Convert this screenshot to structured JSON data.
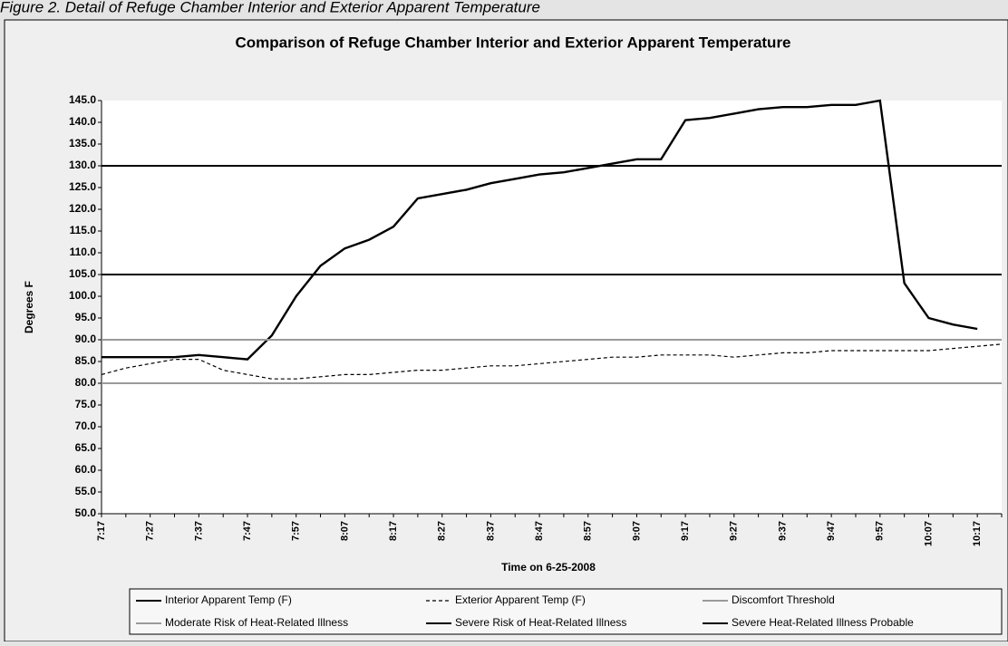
{
  "caption": "Figure 2. Detail of Refuge Chamber Interior and Exterior Apparent Temperature",
  "chart_data": {
    "type": "line",
    "title": "Comparison of Refuge Chamber Interior and Exterior Apparent Temperature",
    "x_label": "Time on 6-25-2008",
    "y_label": "Degrees F",
    "categories": [
      "7:17",
      null,
      "7:27",
      null,
      "7:37",
      null,
      "7:47",
      null,
      "7:57",
      null,
      "8:07",
      null,
      "8:17",
      null,
      "8:27",
      null,
      "8:37",
      null,
      "8:47",
      null,
      "8:57",
      null,
      "9:07",
      null,
      "9:17",
      null,
      "9:27",
      null,
      "9:37",
      null,
      "9:47",
      null,
      "9:57",
      null,
      "10:07",
      null,
      "10:17",
      null
    ],
    "ylim": [
      50,
      145
    ],
    "yticks": [
      {
        "value": 50,
        "label": "50.0"
      },
      {
        "value": 55,
        "label": "55.0"
      },
      {
        "value": 60,
        "label": "60.0"
      },
      {
        "value": 65,
        "label": "65.0"
      },
      {
        "value": 70,
        "label": "70.0"
      },
      {
        "value": 75,
        "label": "75.0"
      },
      {
        "value": 80,
        "label": "80.0"
      },
      {
        "value": 85,
        "label": "85.0"
      },
      {
        "value": 90,
        "label": "90.0"
      },
      {
        "value": 95,
        "label": "95.0"
      },
      {
        "value": 100,
        "label": "100.0"
      },
      {
        "value": 105,
        "label": "105.0"
      },
      {
        "value": 110,
        "label": "110.0"
      },
      {
        "value": 115,
        "label": "115.0"
      },
      {
        "value": 120,
        "label": "120.0"
      },
      {
        "value": 125,
        "label": "125.0"
      },
      {
        "value": 130,
        "label": "130.0"
      },
      {
        "value": 135,
        "label": "135.0"
      },
      {
        "value": 140,
        "label": "140.0"
      },
      {
        "value": 145,
        "label": "145.0"
      }
    ],
    "series": [
      {
        "name": "Interior Apparent Temp (F)",
        "color": "#000000",
        "dash": false,
        "values": [
          86,
          86,
          86,
          86,
          86.5,
          86,
          85.5,
          91,
          100,
          107,
          111,
          113,
          116,
          122.5,
          123.5,
          124.5,
          126,
          127,
          128,
          128.5,
          129.5,
          130.5,
          131.5,
          131.5,
          140.5,
          141,
          142,
          143,
          143.5,
          143.5,
          144,
          144,
          145,
          103,
          95,
          93.5,
          92.5,
          null
        ]
      },
      {
        "name": "Exterior Apparent Temp (F)",
        "color": "#000000",
        "dash": true,
        "values": [
          82,
          83.5,
          84.5,
          85.5,
          85.5,
          83,
          82,
          81,
          81,
          81.5,
          82,
          82,
          82.5,
          83,
          83,
          83.5,
          84,
          84,
          84.5,
          85,
          85.5,
          86,
          86,
          86.5,
          86.5,
          86.5,
          86,
          86.5,
          87,
          87,
          87.5,
          87.5,
          87.5,
          87.5,
          87.5,
          88,
          88.5,
          89
        ]
      },
      {
        "name": "Discomfort Threshold",
        "color": "#9a9a9a",
        "value": 90
      },
      {
        "name": "Moderate Risk of Heat-Related Illness",
        "color": "#9a9a9a",
        "value": 80
      },
      {
        "name": "Severe Risk of Heat-Related Illness",
        "color": "#000000",
        "value": 105
      },
      {
        "name": "Severe Heat-Related Illness Probable",
        "color": "#000000",
        "value": 130
      }
    ]
  }
}
